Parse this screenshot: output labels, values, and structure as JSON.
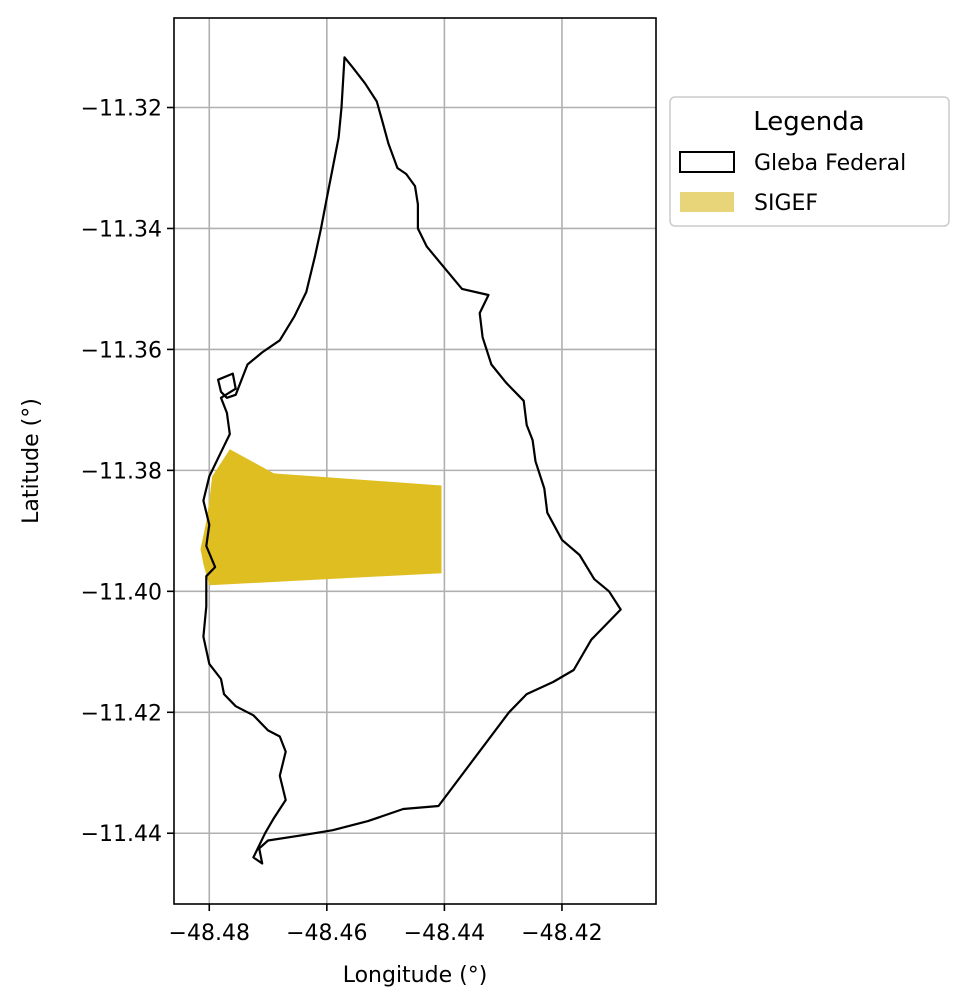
{
  "chart_data": {
    "type": "map",
    "xlabel": "Longitude (°)",
    "ylabel": "Latitude (°)",
    "xlim": [
      -48.486,
      -48.404
    ],
    "ylim": [
      -11.4517,
      -11.3052
    ],
    "grid": true,
    "x_ticks": [
      -48.48,
      -48.46,
      -48.44,
      -48.42
    ],
    "x_tick_labels": [
      "−48.48",
      "−48.46",
      "−48.44",
      "−48.42"
    ],
    "y_ticks": [
      -11.32,
      -11.34,
      -11.36,
      -11.38,
      -11.4,
      -11.42,
      -11.44
    ],
    "y_tick_labels": [
      "−11.32",
      "−11.34",
      "−11.36",
      "−11.38",
      "−11.40",
      "−11.42",
      "−11.44"
    ],
    "legend": {
      "title": "Legenda",
      "placement": "outside-top-right",
      "entries": [
        {
          "label": "Gleba Federal",
          "style": "outline",
          "edge_color": "#000000"
        },
        {
          "label": "SIGEF",
          "style": "fill",
          "fill_color": "#e8d57a"
        }
      ]
    },
    "layers": [
      {
        "name": "Gleba Federal",
        "style": "outline",
        "edge_color": "#000000",
        "coords": [
          [
            -48.457,
            -11.3117
          ],
          [
            -48.4555,
            -11.3135
          ],
          [
            -48.4535,
            -11.316
          ],
          [
            -48.4515,
            -11.319
          ],
          [
            -48.4505,
            -11.3225
          ],
          [
            -48.4495,
            -11.326
          ],
          [
            -48.448,
            -11.33
          ],
          [
            -48.4465,
            -11.331
          ],
          [
            -48.445,
            -11.333
          ],
          [
            -48.4445,
            -11.336
          ],
          [
            -48.4445,
            -11.34
          ],
          [
            -48.443,
            -11.343
          ],
          [
            -48.44,
            -11.3465
          ],
          [
            -48.437,
            -11.35
          ],
          [
            -48.4325,
            -11.351
          ],
          [
            -48.434,
            -11.354
          ],
          [
            -48.4335,
            -11.358
          ],
          [
            -48.432,
            -11.3625
          ],
          [
            -48.4295,
            -11.3655
          ],
          [
            -48.4265,
            -11.3685
          ],
          [
            -48.426,
            -11.3725
          ],
          [
            -48.425,
            -11.375
          ],
          [
            -48.4245,
            -11.3785
          ],
          [
            -48.423,
            -11.383
          ],
          [
            -48.4225,
            -11.387
          ],
          [
            -48.42,
            -11.3915
          ],
          [
            -48.417,
            -11.394
          ],
          [
            -48.4145,
            -11.398
          ],
          [
            -48.412,
            -11.4
          ],
          [
            -48.41,
            -11.403
          ],
          [
            -48.4125,
            -11.4055
          ],
          [
            -48.415,
            -11.408
          ],
          [
            -48.418,
            -11.413
          ],
          [
            -48.4215,
            -11.415
          ],
          [
            -48.426,
            -11.417
          ],
          [
            -48.429,
            -11.42
          ],
          [
            -48.441,
            -11.4355
          ],
          [
            -48.447,
            -11.436
          ],
          [
            -48.453,
            -11.438
          ],
          [
            -48.459,
            -11.4395
          ],
          [
            -48.464,
            -11.4403
          ],
          [
            -48.47,
            -11.4412
          ],
          [
            -48.4715,
            -11.4425
          ],
          [
            -48.471,
            -11.445
          ],
          [
            -48.4725,
            -11.444
          ],
          [
            -48.4705,
            -11.44
          ],
          [
            -48.469,
            -11.4375
          ],
          [
            -48.467,
            -11.4345
          ],
          [
            -48.468,
            -11.4305
          ],
          [
            -48.467,
            -11.4265
          ],
          [
            -48.468,
            -11.424
          ],
          [
            -48.47,
            -11.423
          ],
          [
            -48.4725,
            -11.4205
          ],
          [
            -48.4755,
            -11.419
          ],
          [
            -48.4775,
            -11.417
          ],
          [
            -48.478,
            -11.4145
          ],
          [
            -48.48,
            -11.412
          ],
          [
            -48.481,
            -11.4075
          ],
          [
            -48.4805,
            -11.4025
          ],
          [
            -48.4805,
            -11.3975
          ],
          [
            -48.479,
            -11.396
          ],
          [
            -48.4805,
            -11.3925
          ],
          [
            -48.48,
            -11.389
          ],
          [
            -48.481,
            -11.385
          ],
          [
            -48.48,
            -11.381
          ],
          [
            -48.478,
            -11.377
          ],
          [
            -48.4765,
            -11.374
          ],
          [
            -48.477,
            -11.3705
          ],
          [
            -48.478,
            -11.368
          ],
          [
            -48.4755,
            -11.3665
          ],
          [
            -48.476,
            -11.364
          ],
          [
            -48.4785,
            -11.365
          ],
          [
            -48.478,
            -11.367
          ],
          [
            -48.477,
            -11.368
          ],
          [
            -48.4755,
            -11.3675
          ],
          [
            -48.4735,
            -11.3625
          ],
          [
            -48.471,
            -11.3605
          ],
          [
            -48.468,
            -11.3585
          ],
          [
            -48.4655,
            -11.3545
          ],
          [
            -48.4635,
            -11.3505
          ],
          [
            -48.462,
            -11.3445
          ],
          [
            -48.461,
            -11.34
          ],
          [
            -48.46,
            -11.335
          ],
          [
            -48.459,
            -11.33
          ],
          [
            -48.458,
            -11.325
          ],
          [
            -48.4575,
            -11.32
          ],
          [
            -48.4572,
            -11.315
          ],
          [
            -48.457,
            -11.3117
          ]
        ]
      },
      {
        "name": "SIGEF",
        "style": "fill",
        "fill_color": "#dfbe22",
        "coords": [
          [
            -48.4765,
            -11.3765
          ],
          [
            -48.469,
            -11.3805
          ],
          [
            -48.4405,
            -11.3825
          ],
          [
            -48.4405,
            -11.397
          ],
          [
            -48.48,
            -11.399
          ],
          [
            -48.481,
            -11.3955
          ],
          [
            -48.4815,
            -11.393
          ],
          [
            -48.4805,
            -11.3885
          ],
          [
            -48.48,
            -11.385
          ],
          [
            -48.4795,
            -11.381
          ],
          [
            -48.4775,
            -11.378
          ],
          [
            -48.4765,
            -11.3765
          ]
        ]
      }
    ]
  }
}
